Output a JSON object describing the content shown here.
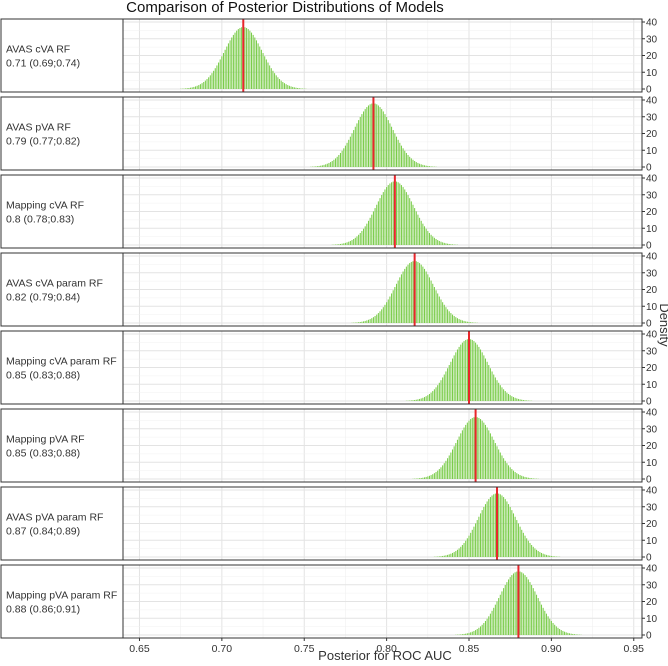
{
  "chart_data": {
    "type": "bar",
    "title": "Comparison of Posterior Distributions of Models",
    "xlabel": "Posterior for ROC AUC",
    "ylabel": "Density",
    "xlim": [
      0.64,
      0.955
    ],
    "ylim": [
      0,
      40
    ],
    "x_ticks": [
      "0.65",
      "0.70",
      "0.75",
      "0.80",
      "0.85",
      "0.90",
      "0.95"
    ],
    "y_ticks": [
      "0",
      "10",
      "20",
      "30",
      "40"
    ],
    "grid": true,
    "bar_color": "#7acc4a",
    "median_line_color": "#e8262b",
    "panels": [
      {
        "name": "AVAS cVA RF",
        "summary": "0.71 (0.69;0.74)",
        "median": 0.713,
        "sd": 0.0115,
        "peak": 37
      },
      {
        "name": "AVAS pVA RF",
        "summary": "0.79 (0.77;0.82)",
        "median": 0.792,
        "sd": 0.0115,
        "peak": 38
      },
      {
        "name": "Mapping cVA RF",
        "summary": "0.8 (0.78;0.83)",
        "median": 0.805,
        "sd": 0.0115,
        "peak": 38
      },
      {
        "name": "AVAS cVA param RF",
        "summary": "0.82 (0.79;0.84)",
        "median": 0.817,
        "sd": 0.0115,
        "peak": 37
      },
      {
        "name": "Mapping cVA param RF",
        "summary": "0.85 (0.83;0.88)",
        "median": 0.85,
        "sd": 0.0115,
        "peak": 37
      },
      {
        "name": "Mapping pVA RF",
        "summary": "0.85 (0.83;0.88)",
        "median": 0.854,
        "sd": 0.0115,
        "peak": 37
      },
      {
        "name": "AVAS pVA param RF",
        "summary": "0.87 (0.84;0.89)",
        "median": 0.867,
        "sd": 0.0115,
        "peak": 38
      },
      {
        "name": "Mapping pVA param RF",
        "summary": "0.88 (0.86;0.91)",
        "median": 0.88,
        "sd": 0.0115,
        "peak": 38
      }
    ]
  }
}
